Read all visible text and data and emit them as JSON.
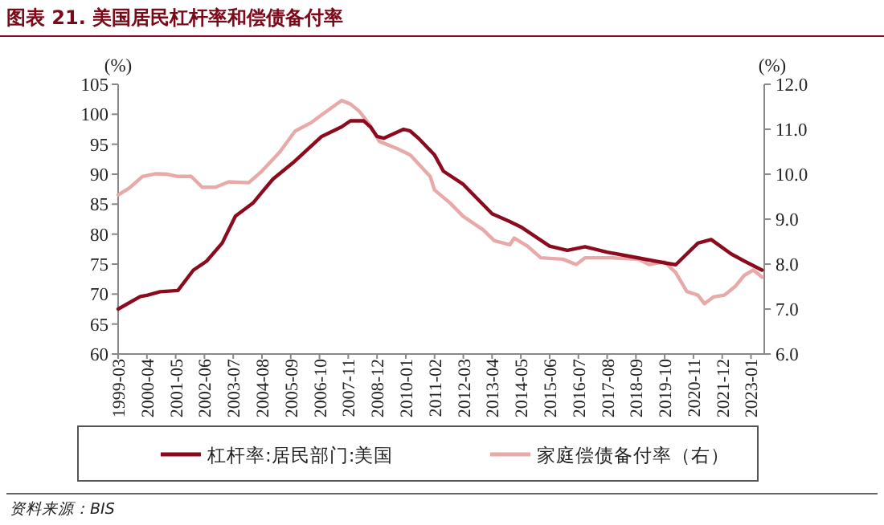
{
  "chart_data": {
    "type": "line",
    "title": "图表 21. 美国居民杠杆率和偿债备付率",
    "ylabel": "(%)",
    "y2label": "(%)",
    "annotations": [
      "资料来源：BIS"
    ],
    "legend": "bottom",
    "xlim": [
      "1999-03",
      "2023-07"
    ],
    "xticks": [
      "1999-03",
      "2000-04",
      "2001-05",
      "2002-06",
      "2003-07",
      "2004-08",
      "2005-09",
      "2006-10",
      "2007-11",
      "2008-12",
      "2010-01",
      "2011-02",
      "2012-03",
      "2013-04",
      "2014-05",
      "2015-06",
      "2016-07",
      "2017-08",
      "2018-09",
      "2019-10",
      "2020-11",
      "2021-12",
      "2023-01"
    ],
    "ylim": [
      60,
      105
    ],
    "yticks": [
      60,
      65,
      70,
      75,
      80,
      85,
      90,
      95,
      100,
      105
    ],
    "y2lim": [
      6,
      12
    ],
    "y2ticks": [
      {
        "value": 6,
        "label": "6.0"
      },
      {
        "value": 7,
        "label": "7.0"
      },
      {
        "value": 8,
        "label": "8.0"
      },
      {
        "value": 9,
        "label": "9.0"
      },
      {
        "value": 10,
        "label": "10.0"
      },
      {
        "value": 11,
        "label": "11.0"
      },
      {
        "value": 12,
        "label": "12.0"
      }
    ],
    "series": [
      {
        "name": "杠杆率:居民部门:美国",
        "color": "#8b0a1e",
        "x": [
          "1999-03",
          "2000-01",
          "2000-04",
          "2000-10",
          "2001-06",
          "2002-01",
          "2002-07",
          "2003-02",
          "2003-08",
          "2004-04",
          "2004-08",
          "2005-01",
          "2005-10",
          "2006-11",
          "2007-08",
          "2007-12",
          "2008-06",
          "2008-09",
          "2008-12",
          "2009-03",
          "2009-12",
          "2010-03",
          "2010-07",
          "2011-02",
          "2011-06",
          "2012-03",
          "2013-04",
          "2013-12",
          "2014-05",
          "2015-06",
          "2016-02",
          "2016-10",
          "2017-08",
          "2018-09",
          "2019-10",
          "2020-03",
          "2021-01",
          "2021-07",
          "2022-04",
          "2022-10",
          "2023-06"
        ],
        "values": [
          67.5,
          69.6,
          69.8,
          70.4,
          70.6,
          74.0,
          75.5,
          78.5,
          83.0,
          85.2,
          87.0,
          89.2,
          91.9,
          96.3,
          97.9,
          98.9,
          98.9,
          97.9,
          96.3,
          96.0,
          97.5,
          97.2,
          95.9,
          93.2,
          90.5,
          88.3,
          83.4,
          82.1,
          81.2,
          78.0,
          77.3,
          77.9,
          77.0,
          76.1,
          75.2,
          74.9,
          78.5,
          79.1,
          76.7,
          75.5,
          74.0
        ]
      },
      {
        "name": "家庭偿债备付率（右）",
        "color": "#e8a9a9",
        "axis": "y2",
        "x": [
          "1999-03",
          "1999-08",
          "2000-02",
          "2000-08",
          "2001-01",
          "2001-06",
          "2001-12",
          "2002-05",
          "2002-11",
          "2003-05",
          "2004-02",
          "2004-08",
          "2005-04",
          "2005-11",
          "2006-06",
          "2006-11",
          "2007-08",
          "2007-12",
          "2008-04",
          "2008-09",
          "2009-01",
          "2009-09",
          "2010-03",
          "2010-12",
          "2011-02",
          "2011-09",
          "2012-03",
          "2012-12",
          "2013-05",
          "2013-12",
          "2014-02",
          "2014-08",
          "2015-02",
          "2015-12",
          "2016-06",
          "2016-10",
          "2017-10",
          "2018-10",
          "2019-03",
          "2019-10",
          "2020-03",
          "2020-08",
          "2021-01",
          "2021-04",
          "2021-08",
          "2022-01",
          "2022-06",
          "2022-10",
          "2023-02",
          "2023-06"
        ],
        "values": [
          9.54,
          9.69,
          9.95,
          10.01,
          10.0,
          9.95,
          9.95,
          9.71,
          9.71,
          9.83,
          9.81,
          10.07,
          10.49,
          10.96,
          11.14,
          11.32,
          11.64,
          11.56,
          11.4,
          11.08,
          10.73,
          10.57,
          10.43,
          9.95,
          9.65,
          9.36,
          9.06,
          8.76,
          8.52,
          8.43,
          8.58,
          8.4,
          8.14,
          8.11,
          7.99,
          8.14,
          8.14,
          8.11,
          7.99,
          8.05,
          7.81,
          7.39,
          7.31,
          7.12,
          7.27,
          7.31,
          7.51,
          7.75,
          7.87,
          7.71
        ]
      }
    ]
  }
}
